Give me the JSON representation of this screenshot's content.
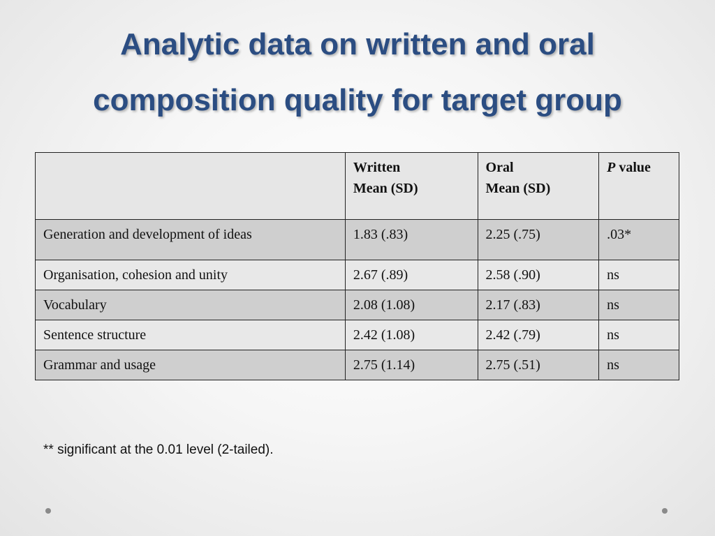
{
  "title": {
    "line1": "Analytic data on written and oral",
    "line2": "composition quality for target group"
  },
  "table": {
    "headers": {
      "empty": "",
      "written_line1": "Written",
      "written_line2": "Mean (SD)",
      "oral_line1": "Oral",
      "oral_line2": "Mean (SD)",
      "p_italic": "P",
      "p_rest": " value"
    },
    "rows": [
      {
        "label": "Generation and development of ideas",
        "written": "1.83 (.83)",
        "oral": "2.25 (.75)",
        "p": ".03*"
      },
      {
        "label": "Organisation, cohesion and unity",
        "written": "2.67 (.89)",
        "oral": "2.58 (.90)",
        "p": "ns"
      },
      {
        "label": "Vocabulary",
        "written": "2.08 (1.08)",
        "oral": "2.17 (.83)",
        "p": "ns"
      },
      {
        "label": "Sentence structure",
        "written": "2.42 (1.08)",
        "oral": "2.42 (.79)",
        "p": "ns"
      },
      {
        "label": "Grammar and usage",
        "written": "2.75 (1.14)",
        "oral": "2.75 (.51)",
        "p": "ns"
      }
    ]
  },
  "footnote": "** significant at the 0.01 level (2-tailed).",
  "colors": {
    "title": "#2b4d82",
    "row_dark": "#cfcfcf",
    "row_light": "#e8e8e8"
  }
}
